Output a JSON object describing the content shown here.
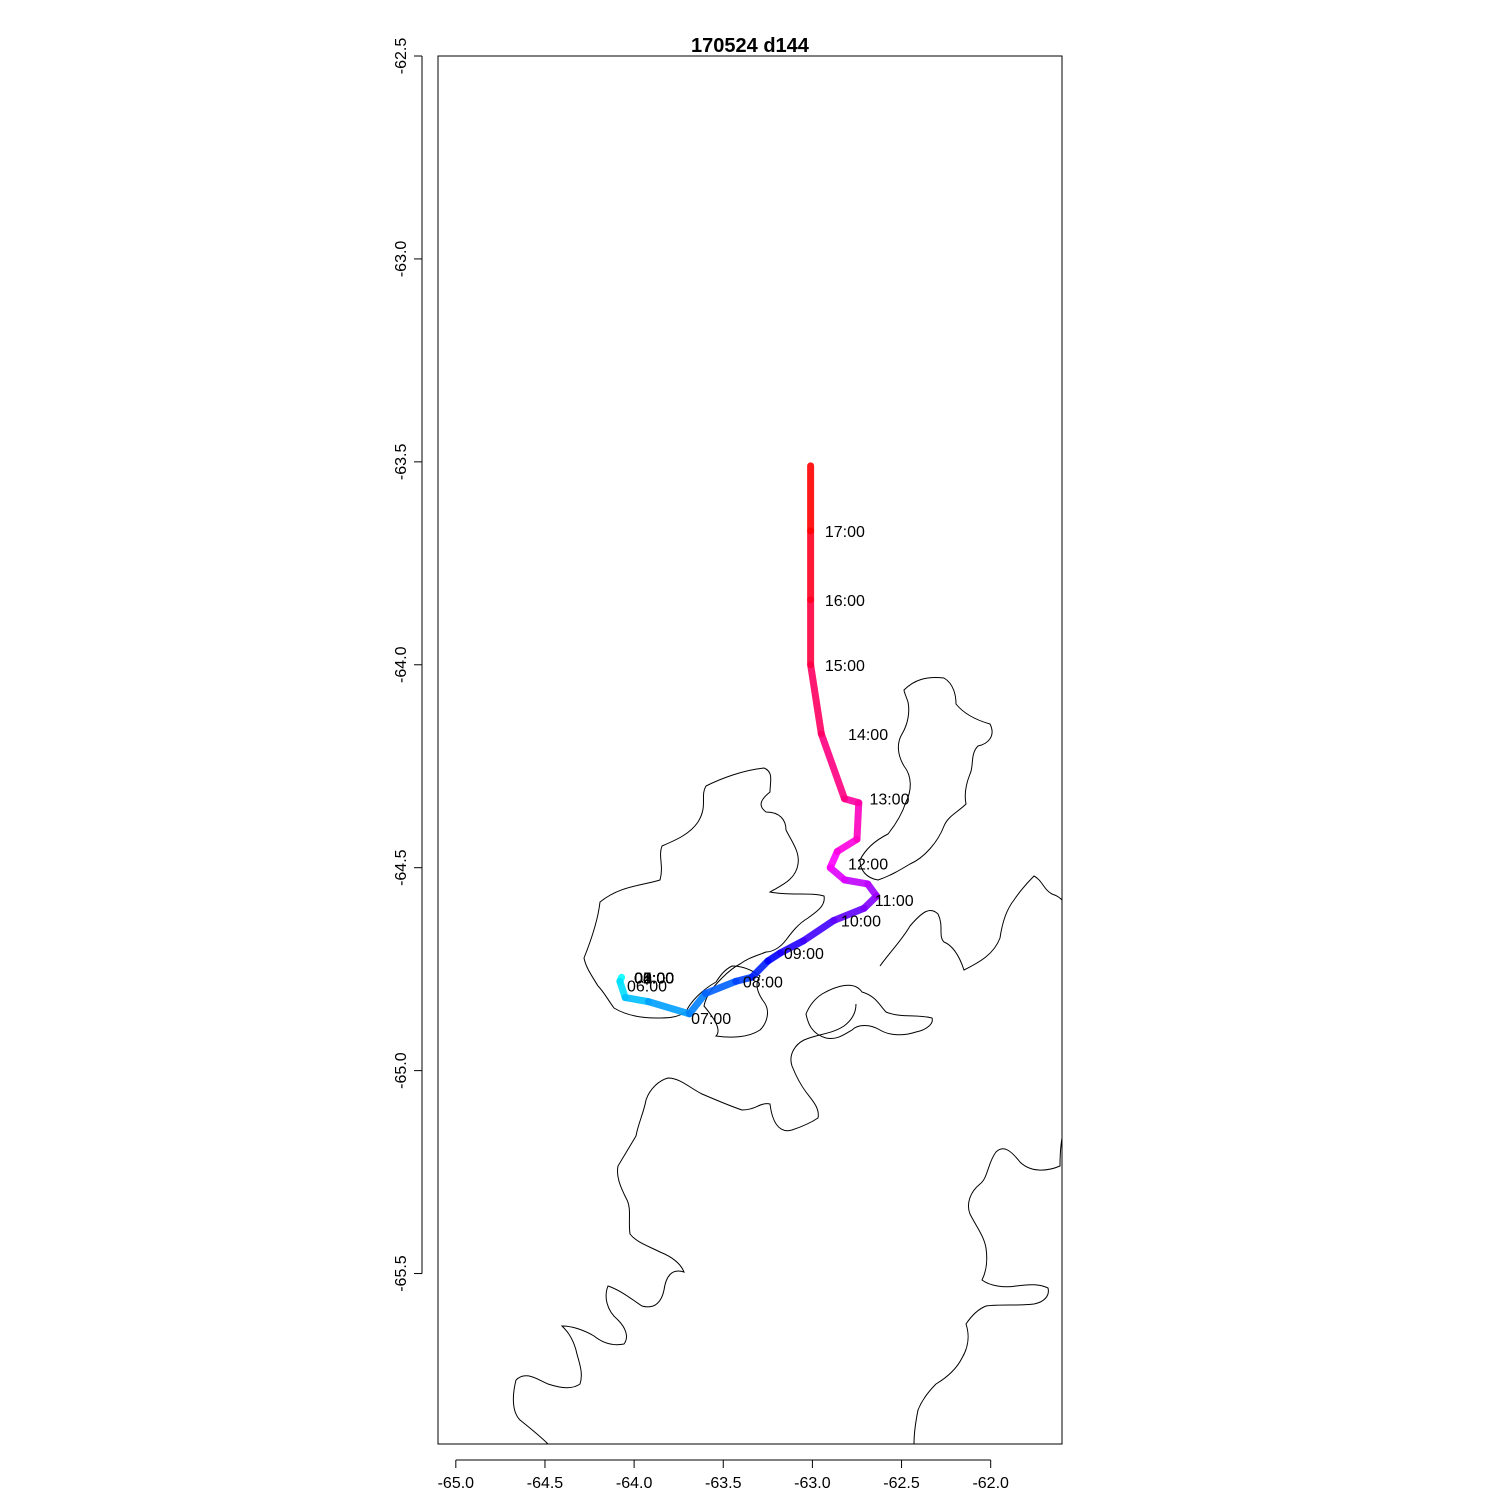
{
  "title": "170524   d144",
  "chart_data": {
    "type": "map-track",
    "xlim": [
      -65.1,
      -61.6
    ],
    "ylim": [
      -65.92,
      -62.5
    ],
    "x_ticks": [
      "-65.0",
      "-64.5",
      "-64.0",
      "-63.5",
      "-63.0",
      "-62.5",
      "-62.0"
    ],
    "x_tick_values": [
      -65.0,
      -64.5,
      -64.0,
      -63.5,
      -63.0,
      -62.5,
      -62.0
    ],
    "y_ticks": [
      "-62.5",
      "-63.0",
      "-63.5",
      "-64.0",
      "-64.5",
      "-65.0",
      "-65.5"
    ],
    "y_tick_values": [
      -62.5,
      -63.0,
      -63.5,
      -64.0,
      -64.5,
      -65.0,
      -65.5
    ],
    "grid": false,
    "track_colors": [
      "#00ffff",
      "#0000ff",
      "#ff00ff",
      "#ff0000"
    ],
    "track": [
      {
        "x": -63.01,
        "y": -63.51
      },
      {
        "x": -63.01,
        "y": -63.67
      },
      {
        "x": -63.01,
        "y": -63.84
      },
      {
        "x": -63.01,
        "y": -64.0
      },
      {
        "x": -62.95,
        "y": -64.17
      },
      {
        "x": -62.82,
        "y": -64.33
      },
      {
        "x": -62.74,
        "y": -64.34
      },
      {
        "x": -62.75,
        "y": -64.43
      },
      {
        "x": -62.86,
        "y": -64.46
      },
      {
        "x": -62.9,
        "y": -64.5
      },
      {
        "x": -62.82,
        "y": -64.53
      },
      {
        "x": -62.69,
        "y": -64.54
      },
      {
        "x": -62.64,
        "y": -64.57
      },
      {
        "x": -62.71,
        "y": -64.6
      },
      {
        "x": -62.88,
        "y": -64.63
      },
      {
        "x": -63.05,
        "y": -64.68
      },
      {
        "x": -63.18,
        "y": -64.71
      },
      {
        "x": -63.25,
        "y": -64.73
      },
      {
        "x": -63.34,
        "y": -64.77
      },
      {
        "x": -63.43,
        "y": -64.78
      },
      {
        "x": -63.6,
        "y": -64.81
      },
      {
        "x": -63.69,
        "y": -64.86
      },
      {
        "x": -63.92,
        "y": -64.83
      },
      {
        "x": -64.05,
        "y": -64.82
      },
      {
        "x": -64.08,
        "y": -64.78
      },
      {
        "x": -64.07,
        "y": -64.77
      }
    ],
    "time_labels": [
      {
        "text": "17:00",
        "x": -62.93,
        "y": -63.67
      },
      {
        "text": "16:00",
        "x": -62.93,
        "y": -63.84
      },
      {
        "text": "15:00",
        "x": -62.93,
        "y": -64.0
      },
      {
        "text": "14:00",
        "x": -62.8,
        "y": -64.17
      },
      {
        "text": "13:00",
        "x": -62.68,
        "y": -64.33
      },
      {
        "text": "12:00",
        "x": -62.8,
        "y": -64.49
      },
      {
        "text": "11:00",
        "x": -62.65,
        "y": -64.58
      },
      {
        "text": "10:00",
        "x": -62.84,
        "y": -64.63
      },
      {
        "text": "09:00",
        "x": -63.16,
        "y": -64.71
      },
      {
        "text": "08:00",
        "x": -63.39,
        "y": -64.78
      },
      {
        "text": "07:00",
        "x": -63.68,
        "y": -64.87
      },
      {
        "text": "06:00",
        "x": -64.04,
        "y": -64.79
      },
      {
        "text": "05:00",
        "x": -64.0,
        "y": -64.77
      },
      {
        "text": "04:00",
        "x": -64.0,
        "y": -64.77
      },
      {
        "text": "03:00",
        "x": -64.0,
        "y": -64.77
      },
      {
        "text": "02:00",
        "x": -64.0,
        "y": -64.77
      },
      {
        "text": "01:00",
        "x": -64.0,
        "y": -64.77
      },
      {
        "text": "00:00",
        "x": -64.0,
        "y": -64.77
      }
    ]
  }
}
